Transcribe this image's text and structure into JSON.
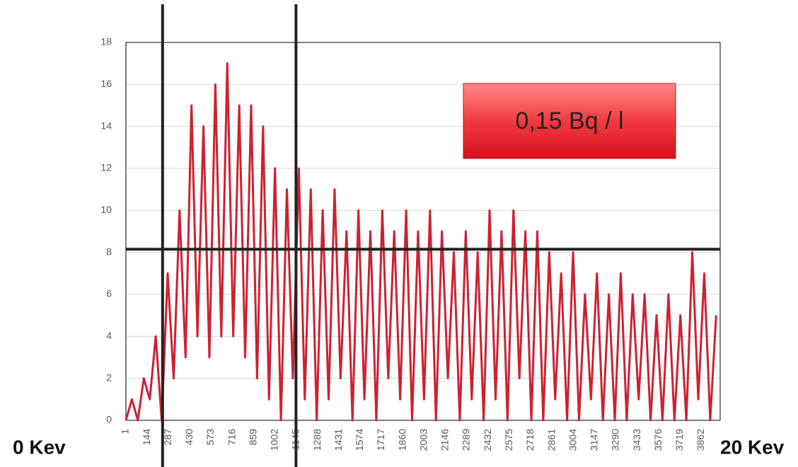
{
  "chart_data": {
    "type": "line",
    "x": [
      1,
      41,
      81,
      121,
      161,
      201,
      241,
      281,
      321,
      361,
      401,
      441,
      481,
      521,
      561,
      601,
      641,
      681,
      721,
      761,
      801,
      841,
      881,
      921,
      961,
      1001,
      1041,
      1081,
      1121,
      1161,
      1201,
      1241,
      1281,
      1321,
      1361,
      1401,
      1441,
      1481,
      1521,
      1561,
      1601,
      1641,
      1681,
      1721,
      1761,
      1801,
      1841,
      1881,
      1921,
      1961,
      2001,
      2041,
      2081,
      2121,
      2161,
      2201,
      2241,
      2281,
      2321,
      2361,
      2401,
      2441,
      2481,
      2521,
      2561,
      2601,
      2641,
      2681,
      2721,
      2761,
      2801,
      2841,
      2881,
      2921,
      2961,
      3001,
      3041,
      3081,
      3121,
      3161,
      3201,
      3241,
      3281,
      3321,
      3361,
      3401,
      3441,
      3481,
      3521,
      3561,
      3601,
      3641,
      3681,
      3721,
      3761,
      3801,
      3841,
      3881,
      3921,
      3961
    ],
    "series": [
      {
        "color": "#cc2232",
        "values": [
          0,
          1,
          0,
          2,
          1,
          4,
          0,
          7,
          2,
          10,
          3,
          15,
          4,
          14,
          3,
          16,
          4,
          17,
          4,
          15,
          3,
          15,
          2,
          14,
          1,
          12,
          0,
          11,
          2,
          12,
          1,
          11,
          0,
          10,
          1,
          11,
          2,
          9,
          0,
          10,
          1,
          9,
          0,
          10,
          2,
          9,
          1,
          10,
          0,
          9,
          1,
          10,
          0,
          9,
          2,
          8,
          0,
          9,
          1,
          8,
          0,
          10,
          1,
          9,
          0,
          10,
          2,
          9,
          0,
          9,
          0,
          8,
          1,
          7,
          0,
          8,
          0,
          6,
          1,
          7,
          0,
          6,
          0,
          7,
          0,
          6,
          1,
          6,
          0,
          5,
          0,
          6,
          0,
          5,
          0,
          8,
          1,
          7,
          0,
          5
        ]
      }
    ],
    "xlim": [
      1,
      3988
    ],
    "xticks": [
      1,
      144,
      287,
      430,
      573,
      716,
      859,
      1002,
      1145,
      1288,
      1431,
      1574,
      1717,
      1860,
      2003,
      2146,
      2289,
      2432,
      2575,
      2718,
      2861,
      3004,
      3147,
      3290,
      3433,
      3576,
      3719,
      3862
    ],
    "ylim": [
      0,
      18
    ],
    "yticks": [
      0,
      2,
      4,
      6,
      8,
      10,
      12,
      14,
      16,
      18
    ],
    "grid": true,
    "markers": {
      "x": [
        247,
        1142
      ],
      "y": 8.15
    },
    "annotation": "0,15 Bq / l",
    "x_start_label": "0 Kev",
    "x_end_label": "20 Kev"
  }
}
